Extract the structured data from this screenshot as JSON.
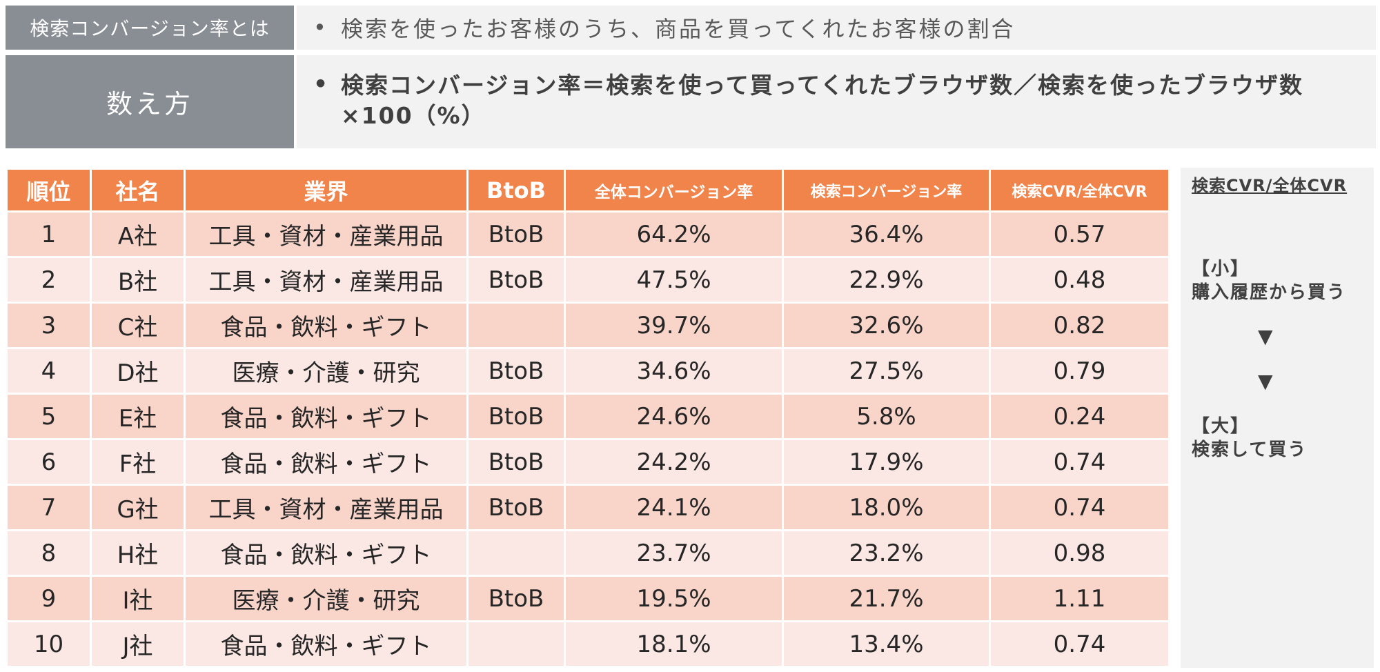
{
  "definition": {
    "label": "検索コンバージョン率とは",
    "text": "検索を使ったお客様のうち、商品を買ってくれたお客様の割合",
    "bullet": "•"
  },
  "counting": {
    "label": "数え方",
    "formula": "検索コンバージョン率＝検索を使って買ってくれたブラウザ数／検索を使ったブラウザ数×100（%）",
    "bullet": "•"
  },
  "table": {
    "headers": [
      "順位",
      "社名",
      "業界",
      "BtoB",
      "全体コンバージョン率",
      "検索コンバージョン率",
      "検索CVR/全体CVR"
    ],
    "rows": [
      {
        "rank": "1",
        "company": "A社",
        "industry": "工具・資材・産業用品",
        "industry_type": "tool",
        "btob": "BtoB",
        "overall_cvr": "64.2%",
        "search_cvr": "36.4%",
        "ratio": "0.57"
      },
      {
        "rank": "2",
        "company": "B社",
        "industry": "工具・資材・産業用品",
        "industry_type": "tool",
        "btob": "BtoB",
        "overall_cvr": "47.5%",
        "search_cvr": "22.9%",
        "ratio": "0.48"
      },
      {
        "rank": "3",
        "company": "C社",
        "industry": "食品・飲料・ギフト",
        "industry_type": "food",
        "btob": "",
        "overall_cvr": "39.7%",
        "search_cvr": "32.6%",
        "ratio": "0.82"
      },
      {
        "rank": "4",
        "company": "D社",
        "industry": "医療・介護・研究",
        "industry_type": "med",
        "btob": "BtoB",
        "overall_cvr": "34.6%",
        "search_cvr": "27.5%",
        "ratio": "0.79"
      },
      {
        "rank": "5",
        "company": "E社",
        "industry": "食品・飲料・ギフト",
        "industry_type": "food",
        "btob": "BtoB",
        "overall_cvr": "24.6%",
        "search_cvr": "5.8%",
        "ratio": "0.24"
      },
      {
        "rank": "6",
        "company": "F社",
        "industry": "食品・飲料・ギフト",
        "industry_type": "food",
        "btob": "BtoB",
        "overall_cvr": "24.2%",
        "search_cvr": "17.9%",
        "ratio": "0.74"
      },
      {
        "rank": "7",
        "company": "G社",
        "industry": "工具・資材・産業用品",
        "industry_type": "tool",
        "btob": "BtoB",
        "overall_cvr": "24.1%",
        "search_cvr": "18.0%",
        "ratio": "0.74"
      },
      {
        "rank": "8",
        "company": "H社",
        "industry": "食品・飲料・ギフト",
        "industry_type": "food",
        "btob": "",
        "overall_cvr": "23.7%",
        "search_cvr": "23.2%",
        "ratio": "0.98"
      },
      {
        "rank": "9",
        "company": "I社",
        "industry": "医療・介護・研究",
        "industry_type": "med",
        "btob": "BtoB",
        "overall_cvr": "19.5%",
        "search_cvr": "21.7%",
        "ratio": "1.11"
      },
      {
        "rank": "10",
        "company": "J社",
        "industry": "食品・飲料・ギフト",
        "industry_type": "food",
        "btob": "",
        "overall_cvr": "18.1%",
        "search_cvr": "13.4%",
        "ratio": "0.74"
      }
    ]
  },
  "side_panel": {
    "title": "検索CVR/全体CVR",
    "small_label": "【小】",
    "small_text": "購入履歴から買う",
    "arrow": "▼",
    "large_label": "【大】",
    "large_text": "検索して買う"
  },
  "colors": {
    "header_orange": "#f0844a",
    "row_odd": "#f9d4c9",
    "row_even": "#fbe8e4",
    "label_gray": "#898d94",
    "tool_green": "#3b6420",
    "food_brown": "#b14b16"
  }
}
